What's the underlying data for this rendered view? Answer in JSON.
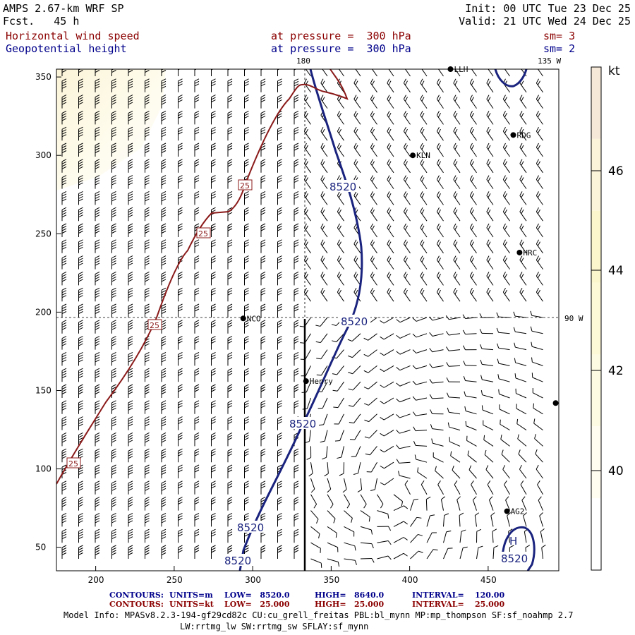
{
  "header": {
    "model": "AMPS 2.67-km WRF SP",
    "forecast": "Fcst.   45 h",
    "init": "Init: 00 UTC Tue 23 Dec 25",
    "valid": "Valid: 21 UTC Wed 24 Dec 25",
    "field1": "Horizontal wind speed",
    "field1_level": "at pressure =  300 hPa",
    "field1_sm": "sm= 3",
    "field2": "Geopotential height",
    "field2_level": "at pressure =  300 hPa",
    "field2_sm": "sm= 2"
  },
  "map": {
    "lon_labels": {
      "top_180": "180",
      "top_135w": "135 W",
      "right_90w": "90 W"
    },
    "x_ticks": [
      "200",
      "250",
      "300",
      "350",
      "400",
      "450"
    ],
    "y_ticks": [
      "350",
      "300",
      "250",
      "200",
      "150",
      "100",
      "50"
    ],
    "stations": [
      {
        "name": "LLH",
        "x": 426,
        "y": 355
      },
      {
        "name": "RDG",
        "x": 466,
        "y": 313
      },
      {
        "name": "KLN",
        "x": 402,
        "y": 300
      },
      {
        "name": "HRC",
        "x": 470,
        "y": 238
      },
      {
        "name": "NCO",
        "x": 294,
        "y": 196
      },
      {
        "name": "Henry",
        "x": 334,
        "y": 156
      },
      {
        "name": "AG2",
        "x": 462,
        "y": 73
      },
      {
        "name": "",
        "x": 493,
        "y": 142
      }
    ],
    "height_labels": [
      "8520",
      "8520",
      "8520",
      "8520",
      "8520",
      "8520"
    ],
    "wind_labels": [
      "25",
      "25",
      "25",
      "25"
    ],
    "high_marker": "H"
  },
  "colorbar": {
    "unit": "kt",
    "labels": [
      "46",
      "44",
      "42",
      "40"
    ],
    "colors": [
      "#f5e8d8",
      "#fbf3da",
      "#fbf6cc",
      "#fdf8d6",
      "#fefbe3",
      "#fffdf0",
      "#ffffff"
    ]
  },
  "footer": {
    "c1_label": "CONTOURS:",
    "c1_units": "UNITS=m",
    "c1_low": "LOW=   8520.0",
    "c1_high": "HIGH=   8640.0",
    "c1_int": "INTERVAL=    120.00",
    "c2_label": "CONTOURS:",
    "c2_units": "UNITS=kt",
    "c2_low": "LOW=   25.000",
    "c2_high": "HIGH=   25.000",
    "c2_int": "INTERVAL=    25.000",
    "info1": "Model Info: MPASv8.2.3-194-gf29cd82c CU:cu_grell_freitas PBL:bl_mynn MP:mp_thompson SF:sf_noahmp 2.7",
    "info2": "LW:rrtmg_lw SW:rrtmg_sw SFLAY:sf_mynn"
  }
}
